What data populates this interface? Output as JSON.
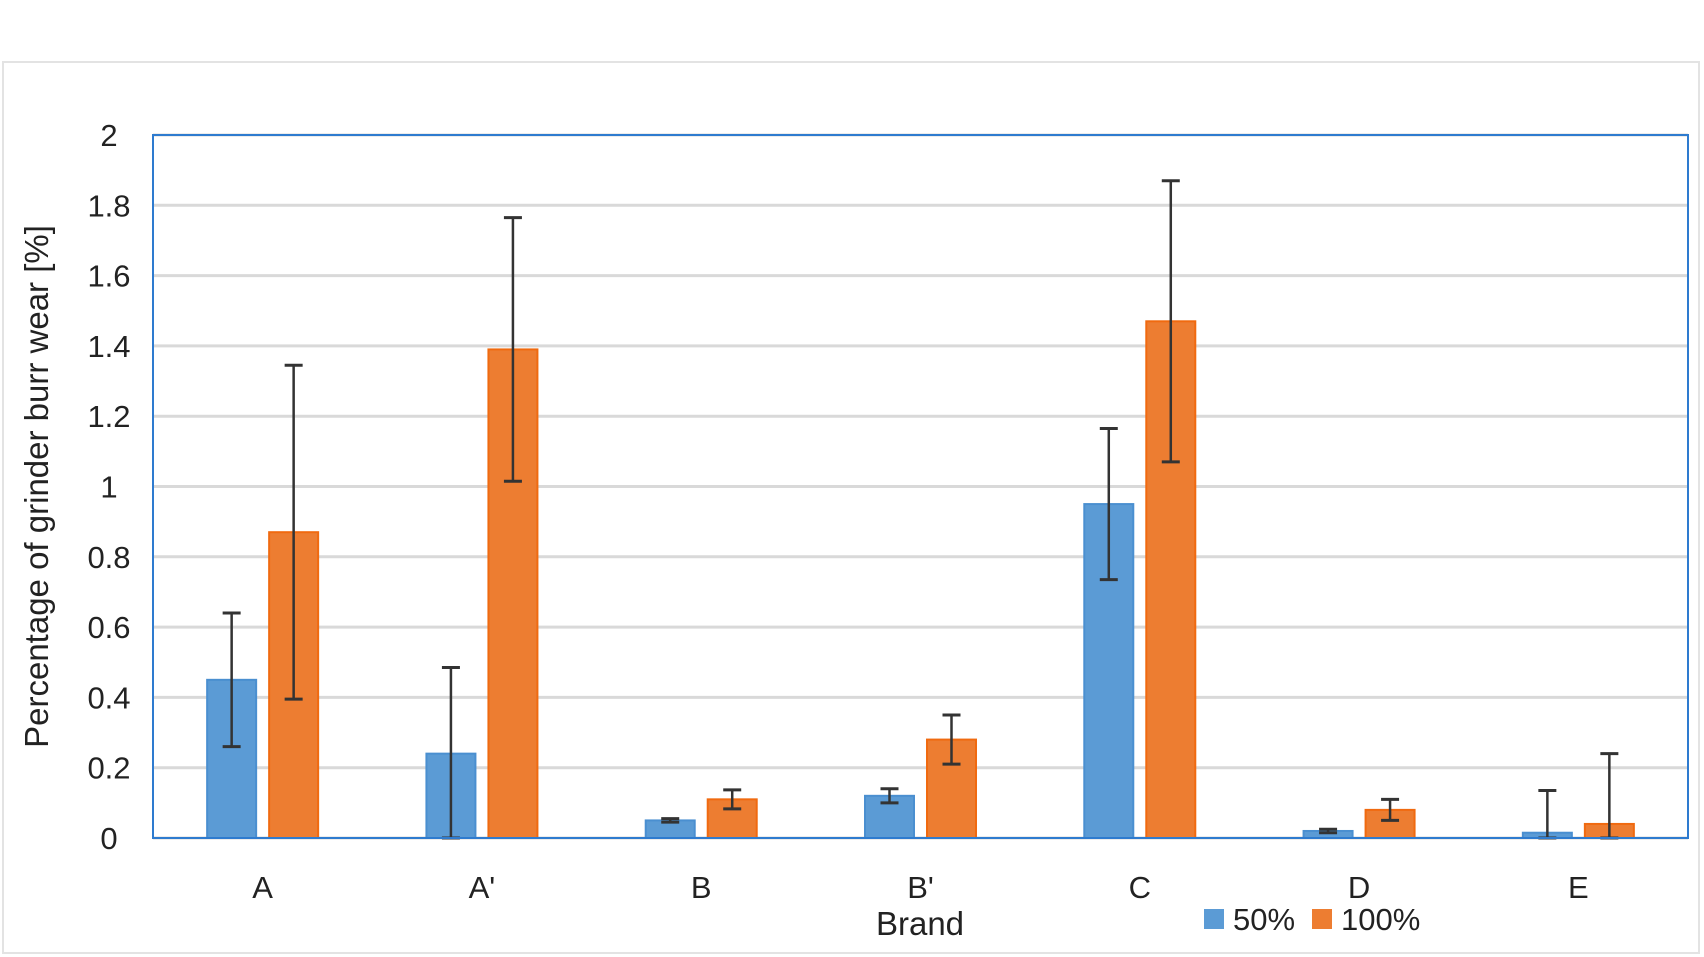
{
  "chart_data": {
    "type": "bar",
    "title": "",
    "xlabel": "Brand",
    "ylabel": "Percentage of grinder burr wear [%]",
    "ylim": [
      0,
      2
    ],
    "yticks": [
      "0",
      "0.2",
      "0.4",
      "0.6",
      "0.8",
      "1",
      "1.2",
      "1.4",
      "1.6",
      "1.8",
      "2"
    ],
    "grid": true,
    "legend_placement": "bottom",
    "categories": [
      "A",
      "A'",
      "B",
      "B'",
      "C",
      "D",
      "E"
    ],
    "series": [
      {
        "name": "50%",
        "color": "#5B9BD5",
        "values": [
          0.45,
          0.24,
          0.05,
          0.12,
          0.95,
          0.02,
          0.015
        ],
        "errors": [
          0.19,
          0.245,
          0.005,
          0.02,
          0.215,
          0.005,
          0.12
        ]
      },
      {
        "name": "100%",
        "color": "#ED7D31",
        "values": [
          0.87,
          1.39,
          0.11,
          0.28,
          1.47,
          0.08,
          0.04
        ],
        "errors": [
          0.475,
          0.375,
          0.027,
          0.07,
          0.4,
          0.03,
          0.2
        ]
      }
    ]
  }
}
